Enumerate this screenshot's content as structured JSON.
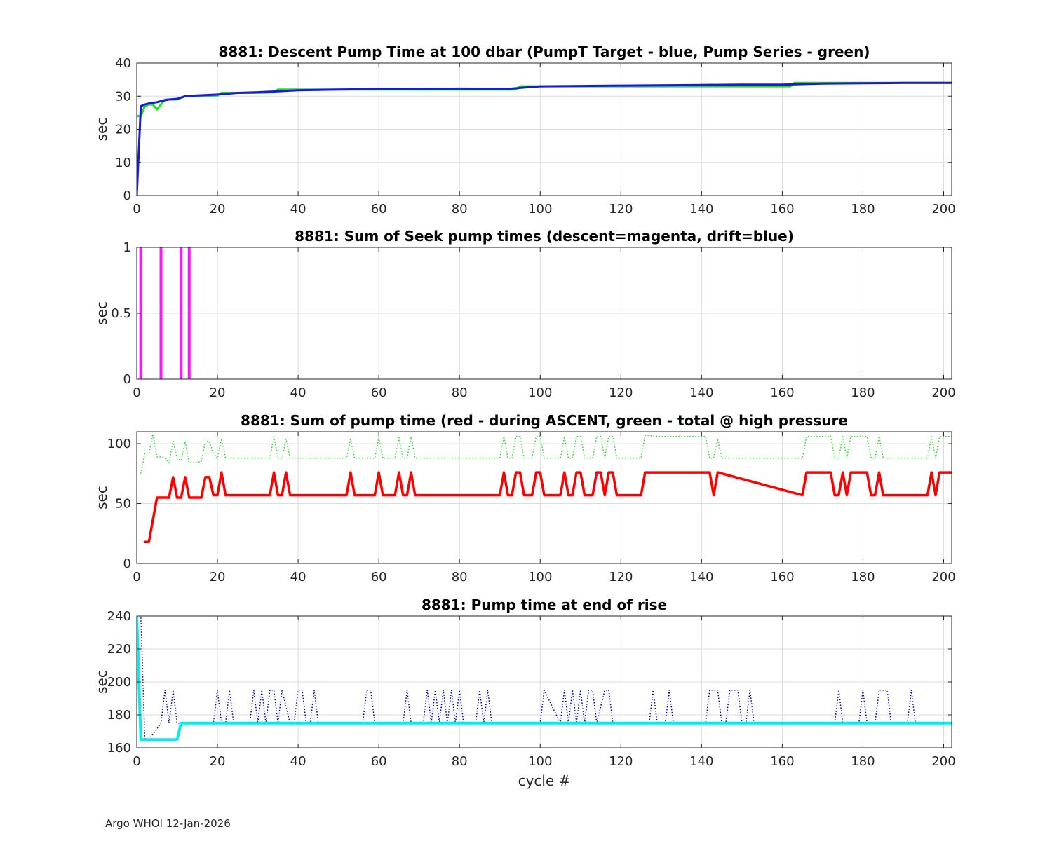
{
  "footer": "Argo WHOI 12-Jan-2026",
  "chart_data": [
    {
      "type": "line",
      "title": "8881: Descent Pump Time at 100 dbar (PumpT Target - blue, Pump Series - green)",
      "xlabel": "",
      "ylabel": "sec",
      "xlim": [
        0,
        202
      ],
      "ylim": [
        0,
        40
      ],
      "xticks": [
        0,
        20,
        40,
        60,
        80,
        100,
        120,
        140,
        160,
        180,
        200
      ],
      "yticks": [
        0,
        10,
        20,
        30,
        40
      ],
      "grid": true,
      "series": [
        {
          "color": "#1fe01f",
          "style": "solid",
          "width": 3,
          "x": [
            0,
            1,
            2,
            3,
            4,
            5,
            6,
            7,
            8,
            10,
            11,
            12,
            20,
            21,
            25,
            30,
            34,
            35,
            40,
            50,
            55,
            60,
            70,
            75,
            80,
            85,
            90,
            94,
            95,
            100,
            110,
            120,
            130,
            140,
            150,
            160,
            162,
            163,
            170,
            180,
            190,
            200,
            202
          ],
          "y": [
            24,
            24,
            27,
            27.5,
            27.5,
            26,
            27.5,
            29,
            29,
            29,
            29.5,
            30,
            30.2,
            31,
            31,
            31,
            31.2,
            32,
            32,
            32,
            32,
            32,
            32,
            32,
            32,
            32,
            32,
            32,
            33,
            33,
            33,
            33,
            33,
            33,
            33,
            33,
            33,
            34,
            34,
            34,
            34,
            34,
            34
          ]
        },
        {
          "color": "#1a1adb",
          "style": "solid",
          "width": 3,
          "x": [
            0,
            1,
            2,
            3,
            4,
            5,
            6,
            7,
            8,
            10,
            12,
            15,
            20,
            25,
            30,
            35,
            40,
            50,
            60,
            70,
            80,
            90,
            93,
            95,
            100,
            120,
            140,
            150,
            160,
            170,
            180,
            190,
            202
          ],
          "y": [
            0,
            27,
            27.5,
            27.8,
            28,
            28.2,
            28.5,
            28.8,
            29,
            29.2,
            30,
            30.2,
            30.5,
            31,
            31.2,
            31.5,
            31.8,
            32,
            32.2,
            32.2,
            32.3,
            32.2,
            32.3,
            32.5,
            33,
            33.2,
            33.4,
            33.5,
            33.5,
            33.8,
            33.9,
            34,
            34
          ]
        }
      ]
    },
    {
      "type": "bar",
      "title": "8881: Sum of Seek pump times (descent=magenta, drift=blue)",
      "xlabel": "",
      "ylabel": "sec",
      "xlim": [
        0,
        202
      ],
      "ylim": [
        0,
        1
      ],
      "xticks": [
        0,
        20,
        40,
        60,
        80,
        100,
        120,
        140,
        160,
        180,
        200
      ],
      "yticks": [
        0,
        0.5,
        1
      ],
      "ytick_labels": [
        "0",
        "0.5",
        "1"
      ],
      "grid": true,
      "bars": {
        "color": "#ff14ff",
        "x": [
          1,
          6,
          11,
          13
        ],
        "values": [
          1,
          1,
          1,
          1
        ]
      }
    },
    {
      "type": "line",
      "title": "8881: Sum of pump time (red - during ASCENT, green - total @ high pressure",
      "xlabel": "",
      "ylabel": "sec",
      "xlim": [
        0,
        202
      ],
      "ylim": [
        0,
        110
      ],
      "xticks": [
        0,
        20,
        40,
        60,
        80,
        100,
        120,
        140,
        160,
        180,
        200
      ],
      "yticks": [
        0,
        50,
        100
      ],
      "grid": true,
      "series": [
        {
          "color": "#1fe01f",
          "style": "dotted",
          "width": 1.5,
          "x": [
            1,
            2,
            3,
            4,
            5,
            6,
            7,
            8,
            9,
            10,
            11,
            12,
            13,
            14,
            16,
            17,
            18,
            19,
            20,
            21,
            22,
            23,
            30,
            33,
            34,
            35,
            36,
            37,
            38,
            39,
            50,
            52,
            53,
            54,
            59,
            60,
            61,
            64,
            65,
            66,
            67,
            68,
            69,
            88,
            90,
            91,
            92,
            93,
            94,
            95,
            96,
            98,
            99,
            100,
            101,
            105,
            106,
            107,
            108,
            109,
            110,
            111,
            113,
            114,
            115,
            116,
            117,
            118,
            119,
            125,
            126,
            130,
            140,
            141,
            142,
            143,
            144,
            145,
            160,
            165,
            166,
            172,
            173,
            174,
            175,
            176,
            177,
            180,
            181,
            182,
            183,
            184,
            185,
            186,
            196,
            197,
            198,
            199,
            202
          ],
          "y": [
            75,
            92,
            92,
            108,
            89,
            89,
            88,
            84,
            102,
            88,
            86,
            102,
            84,
            84,
            85,
            102,
            102,
            92,
            88,
            104,
            88,
            88,
            88,
            88,
            106,
            88,
            88,
            104,
            88,
            88,
            88,
            88,
            104,
            88,
            88,
            105,
            88,
            88,
            105,
            88,
            88,
            106,
            88,
            88,
            88,
            106,
            88,
            88,
            106,
            106,
            88,
            88,
            106,
            106,
            88,
            88,
            106,
            88,
            88,
            106,
            106,
            88,
            88,
            106,
            106,
            88,
            106,
            106,
            88,
            88,
            107,
            106,
            106,
            106,
            88,
            88,
            104,
            88,
            88,
            88,
            106,
            106,
            88,
            88,
            106,
            88,
            106,
            106,
            106,
            88,
            88,
            106,
            88,
            88,
            88,
            106,
            88,
            106,
            106
          ]
        },
        {
          "color": "#ff0000",
          "style": "solid",
          "width": 3.5,
          "x": [
            2,
            3,
            5,
            8,
            9,
            10,
            11,
            12,
            13,
            16,
            17,
            18,
            19,
            20,
            21,
            22,
            33,
            34,
            35,
            36,
            37,
            38,
            52,
            53,
            54,
            59,
            60,
            61,
            64,
            65,
            66,
            67,
            68,
            69,
            90,
            91,
            92,
            93,
            94,
            95,
            96,
            98,
            99,
            100,
            101,
            105,
            106,
            107,
            108,
            109,
            110,
            111,
            113,
            114,
            115,
            116,
            117,
            118,
            119,
            125,
            126,
            141,
            142,
            143,
            144,
            165,
            166,
            172,
            173,
            174,
            175,
            176,
            177,
            180,
            181,
            182,
            183,
            184,
            185,
            196,
            197,
            198,
            199,
            202
          ],
          "y": [
            18,
            18,
            55,
            55,
            72,
            55,
            55,
            72,
            55,
            55,
            72,
            72,
            57,
            57,
            76,
            57,
            57,
            76,
            57,
            57,
            76,
            57,
            57,
            76,
            57,
            57,
            76,
            57,
            57,
            76,
            57,
            57,
            76,
            57,
            57,
            76,
            57,
            57,
            76,
            76,
            57,
            57,
            76,
            76,
            57,
            57,
            76,
            57,
            57,
            76,
            76,
            57,
            57,
            76,
            76,
            57,
            76,
            76,
            57,
            57,
            76,
            76,
            76,
            57,
            76,
            57,
            76,
            76,
            57,
            57,
            76,
            57,
            76,
            76,
            76,
            57,
            57,
            76,
            57,
            57,
            76,
            57,
            76,
            76
          ]
        }
      ]
    },
    {
      "type": "line",
      "title": "8881: Pump time at end of rise",
      "xlabel": "cycle #",
      "ylabel": "sec",
      "xlim": [
        0,
        202
      ],
      "ylim": [
        160,
        240
      ],
      "xticks": [
        0,
        20,
        40,
        60,
        80,
        100,
        120,
        140,
        160,
        180,
        200
      ],
      "yticks": [
        160,
        180,
        200,
        220,
        240
      ],
      "grid": true,
      "series": [
        {
          "color": "#0000b4",
          "style": "dotted",
          "width": 1.5,
          "x": [
            0,
            1,
            2,
            3,
            6,
            7,
            8,
            9,
            10,
            11,
            19,
            20,
            21,
            22,
            23,
            24,
            25,
            28,
            29,
            30,
            31,
            32,
            33,
            34,
            35,
            36,
            38,
            39,
            40,
            41,
            42,
            43,
            44,
            45,
            56,
            57,
            58,
            59,
            66,
            67,
            68,
            71,
            72,
            73,
            74,
            75,
            76,
            77,
            78,
            79,
            80,
            81,
            84,
            85,
            86,
            87,
            88,
            99,
            100,
            101,
            105,
            106,
            107,
            108,
            109,
            110,
            111,
            112,
            113,
            114,
            116,
            117,
            118,
            120,
            127,
            128,
            129,
            130,
            131,
            132,
            133,
            140,
            141,
            142,
            144,
            145,
            146,
            147,
            149,
            150,
            151,
            152,
            153,
            154,
            173,
            174,
            175,
            176,
            179,
            180,
            181,
            183,
            184,
            186,
            187,
            191,
            192,
            193,
            194
          ],
          "y": [
            240,
            240,
            165,
            165,
            175,
            195,
            175,
            195,
            175,
            175,
            175,
            195,
            175,
            175,
            195,
            175,
            175,
            175,
            195,
            175,
            195,
            175,
            195,
            195,
            175,
            195,
            175,
            175,
            195,
            195,
            175,
            175,
            195,
            175,
            175,
            195,
            195,
            175,
            175,
            195,
            175,
            175,
            195,
            175,
            195,
            175,
            195,
            175,
            195,
            175,
            195,
            175,
            175,
            195,
            175,
            195,
            175,
            175,
            175,
            195,
            175,
            195,
            175,
            195,
            175,
            195,
            175,
            195,
            195,
            175,
            195,
            195,
            175,
            175,
            175,
            195,
            175,
            175,
            175,
            195,
            175,
            175,
            175,
            195,
            195,
            175,
            175,
            195,
            195,
            175,
            175,
            195,
            175,
            175,
            175,
            195,
            175,
            175,
            175,
            195,
            175,
            175,
            195,
            195,
            175,
            175,
            195,
            175,
            175
          ]
        },
        {
          "color": "#00eeee",
          "style": "solid",
          "width": 4,
          "x": [
            0,
            1,
            2,
            3,
            10,
            11,
            12,
            20,
            202
          ],
          "y": [
            240,
            165,
            165,
            165,
            165,
            175,
            175,
            175,
            175
          ]
        }
      ]
    }
  ]
}
